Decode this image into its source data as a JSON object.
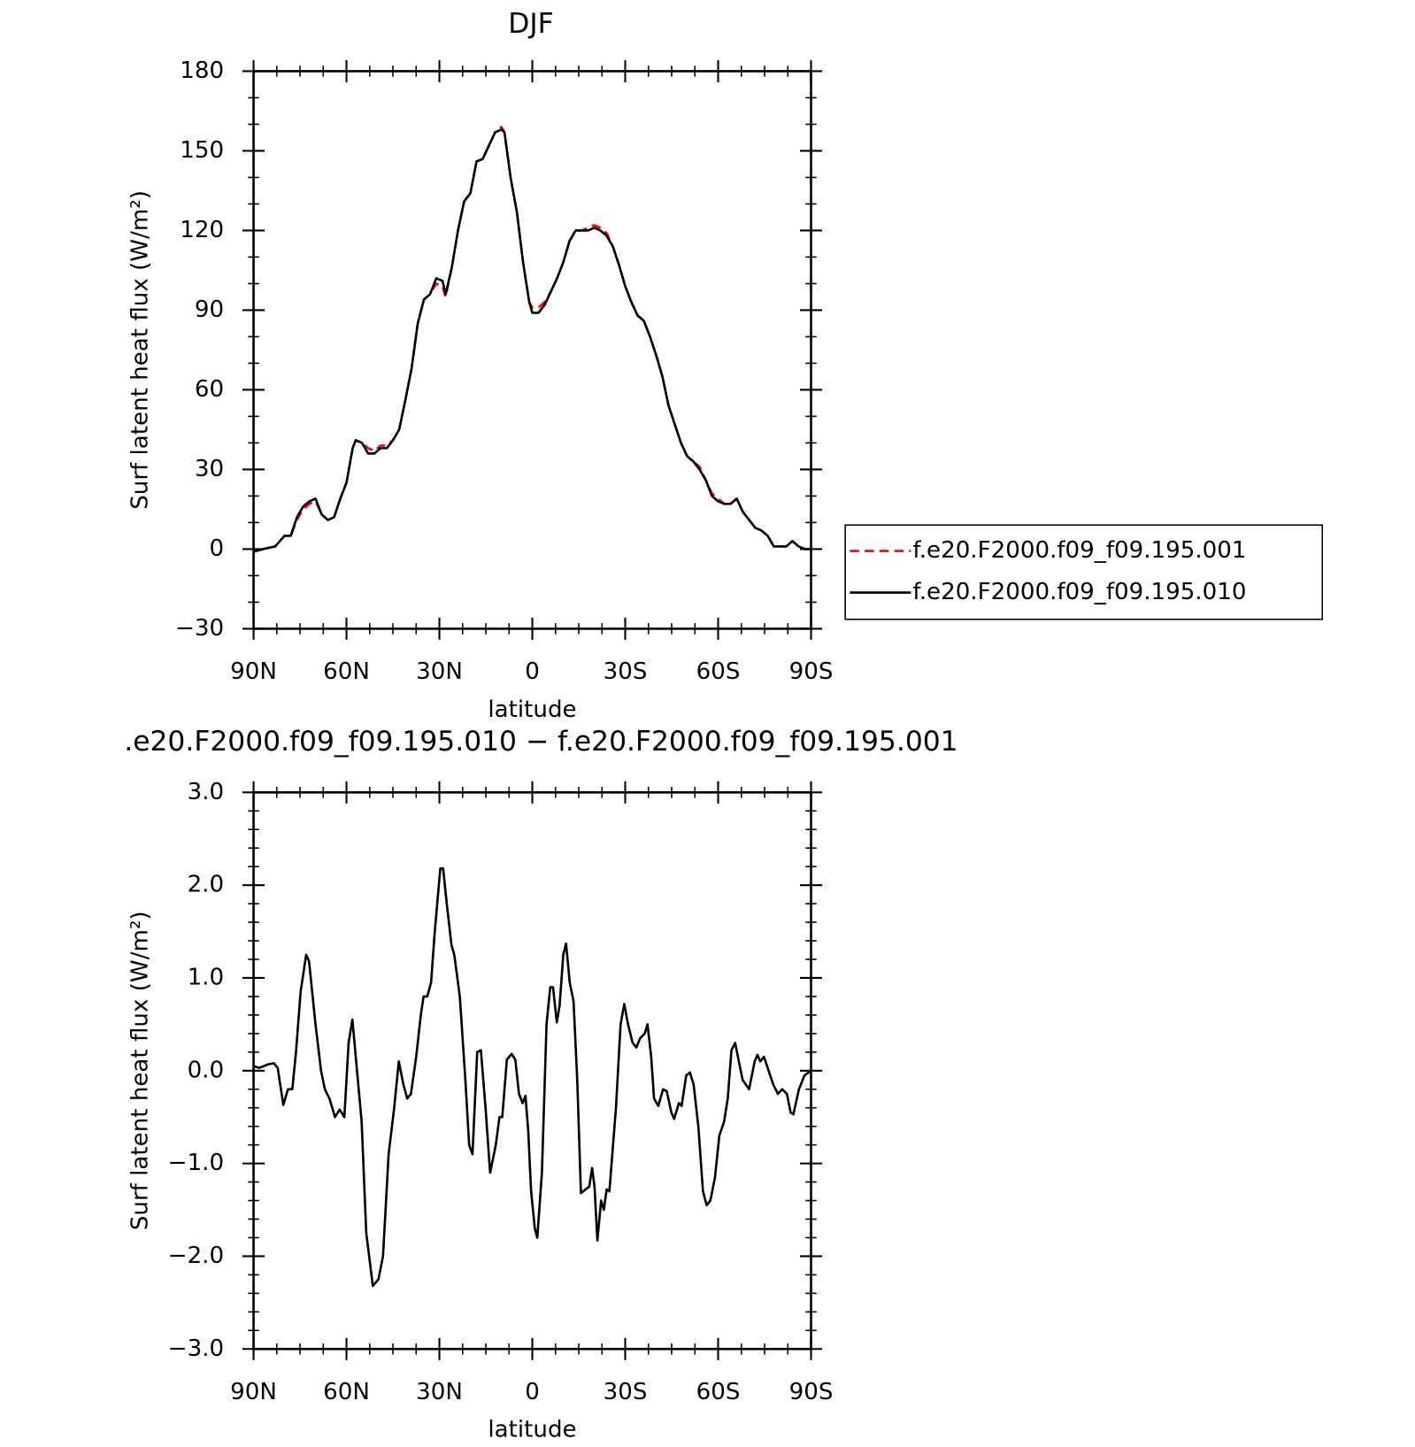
{
  "chart_data": [
    {
      "type": "line",
      "title": "DJF",
      "xlabel": "latitude",
      "ylabel": "Surf latent heat flux (W/m²)",
      "x": [
        90,
        87,
        83,
        80,
        78,
        76,
        74,
        72,
        70,
        68,
        66,
        64,
        62,
        60,
        58,
        57,
        55,
        53,
        51,
        49,
        47,
        45,
        43,
        41,
        39,
        37,
        35,
        33,
        31,
        29,
        28,
        26,
        24,
        22,
        20,
        18,
        16,
        14,
        12,
        10,
        9,
        7,
        5,
        3,
        1,
        0,
        -2,
        -4,
        -6,
        -8,
        -10,
        -12,
        -14,
        -16,
        -18,
        -20,
        -22,
        -24,
        -26,
        -28,
        -30,
        -32,
        -34,
        -36,
        -38,
        -40,
        -42,
        -44,
        -46,
        -48,
        -50,
        -52,
        -54,
        -56,
        -58,
        -60,
        -62,
        -64,
        -66,
        -68,
        -70,
        -72,
        -74,
        -76,
        -78,
        -80,
        -82,
        -84,
        -86,
        -88,
        -90
      ],
      "series": [
        {
          "name": "f.e20.F2000.f09_f09.195.001",
          "color": "#ff0000",
          "linestyle": "dashed",
          "values": [
            -1,
            0,
            1,
            5,
            5,
            11,
            15,
            17,
            18,
            13,
            11,
            12,
            19,
            25,
            38,
            41,
            40,
            38,
            37,
            39,
            39,
            41,
            45,
            56,
            68,
            85,
            94,
            96,
            100,
            99,
            95,
            106,
            120,
            131,
            134,
            146,
            147,
            152,
            157,
            159,
            157,
            140,
            127,
            108,
            93,
            91,
            91,
            93,
            97,
            102,
            108,
            116,
            120,
            120,
            121,
            122,
            121,
            119,
            114,
            107,
            99,
            93,
            88,
            86,
            80,
            73,
            65,
            54,
            47,
            40,
            35,
            33,
            31,
            26,
            21,
            19,
            17,
            17,
            19,
            14,
            11,
            8,
            7,
            5,
            1,
            1,
            1,
            3,
            1,
            0,
            0
          ]
        },
        {
          "name": "f.e20.F2000.f09_f09.195.010",
          "color": "#000000",
          "linestyle": "solid",
          "values": [
            -1,
            0,
            1,
            5,
            5,
            12,
            16,
            18,
            19,
            13,
            11,
            12,
            19,
            25,
            38,
            41,
            40,
            36,
            36,
            38,
            38,
            41,
            45,
            56,
            68,
            85,
            94,
            96,
            102,
            101,
            96,
            106,
            120,
            131,
            134,
            146,
            147,
            152,
            157,
            158,
            157,
            140,
            127,
            108,
            93,
            89,
            89,
            92,
            97,
            102,
            108,
            116,
            120,
            120,
            120,
            121,
            120,
            118,
            114,
            107,
            99,
            93,
            88,
            86,
            80,
            73,
            65,
            54,
            47,
            40,
            35,
            33,
            30,
            26,
            20,
            18,
            17,
            17,
            19,
            14,
            11,
            8,
            7,
            5,
            1,
            1,
            1,
            3,
            1,
            0,
            0
          ]
        }
      ],
      "xlim": [
        90,
        -90
      ],
      "xticks": [
        {
          "value": 90,
          "label": "90N"
        },
        {
          "value": 60,
          "label": "60N"
        },
        {
          "value": 30,
          "label": "30N"
        },
        0,
        {
          "value": -30,
          "label": "30S"
        },
        {
          "value": -60,
          "label": "60S"
        },
        {
          "value": -90,
          "label": "90S"
        }
      ],
      "ylim": [
        -30,
        180
      ],
      "yticks": [
        {
          "value": -30,
          "label": "−30"
        },
        0,
        30,
        60,
        90,
        120,
        150,
        180
      ],
      "legend": "right"
    },
    {
      "type": "line",
      "title": ".e20.F2000.f09_f09.195.010 − f.e20.F2000.f09_f09.195.001",
      "xlabel": "latitude",
      "ylabel": "Surf latent heat flux (W/m²)",
      "x": [
        90,
        88.2,
        85.2,
        83.4,
        82.2,
        80.4,
        78.9,
        77.5,
        76.3,
        74.8,
        73,
        72.1,
        70,
        68.2,
        67,
        65.5,
        63.7,
        62.2,
        60.7,
        59.3,
        58.1,
        56.6,
        55.1,
        53.6,
        51.5,
        49.7,
        48.2,
        46.4,
        44.6,
        43.1,
        41.6,
        40.4,
        39.2,
        37.5,
        36,
        35.1,
        33.9,
        32.7,
        31.5,
        29.7,
        28.8,
        27.6,
        26.1,
        25.2,
        23.4,
        21.6,
        20.4,
        19.3,
        17.8,
        16.6,
        15.1,
        13.6,
        11.8,
        10.6,
        9.7,
        8.2,
        6.7,
        5.5,
        4.3,
        3.1,
        2.2,
        1.3,
        0.4,
        -0.8,
        -1.6,
        -3.1,
        -4.6,
        -5.8,
        -6.7,
        -7.9,
        -8.8,
        -10,
        -10.9,
        -12.1,
        -13.3,
        -14.5,
        -15.7,
        -17.2,
        -18.4,
        -19.3,
        -20.1,
        -21,
        -22.2,
        -23.1,
        -24,
        -24.9,
        -27,
        -28.5,
        -29.7,
        -30.9,
        -32.4,
        -33.6,
        -34.8,
        -36.3,
        -37.2,
        -38.4,
        -39.3,
        -40.7,
        -42.2,
        -43.4,
        -44.9,
        -45.8,
        -47.3,
        -48.2,
        -49.7,
        -50.9,
        -52.1,
        -53.6,
        -55.1,
        -56.3,
        -57.5,
        -59,
        -60.4,
        -61.9,
        -63.1,
        -64.3,
        -65.5,
        -66.7,
        -67.9,
        -70,
        -71.8,
        -72.7,
        -73.6,
        -74.8,
        -76.3,
        -77.8,
        -79.3,
        -80.7,
        -82.2,
        -83.4,
        -84.3,
        -86.1,
        -87.9,
        -90
      ],
      "values": [
        0.05,
        0.03,
        0.07,
        0.08,
        0.03,
        -0.37,
        -0.2,
        -0.2,
        0.2,
        0.85,
        1.25,
        1.18,
        0.5,
        0,
        -0.2,
        -0.3,
        -0.5,
        -0.42,
        -0.5,
        0.3,
        0.55,
        0,
        -0.55,
        -1.75,
        -2.32,
        -2.25,
        -2,
        -0.9,
        -0.4,
        0.1,
        -0.15,
        -0.3,
        -0.25,
        0.15,
        0.6,
        0.8,
        0.8,
        0.95,
        1.5,
        2.18,
        2.18,
        1.8,
        1.35,
        1.25,
        0.8,
        -0.1,
        -0.8,
        -0.9,
        0.2,
        0.22,
        -0.4,
        -1.1,
        -0.8,
        -0.5,
        -0.5,
        0.12,
        0.18,
        0.12,
        -0.25,
        -0.35,
        -0.27,
        -0.65,
        -1.3,
        -1.7,
        -1.8,
        -1.1,
        0.5,
        0.9,
        0.9,
        0.52,
        0.7,
        1.25,
        1.37,
        0.95,
        0.75,
        -0.1,
        -1.32,
        -1.28,
        -1.25,
        -1.05,
        -1.25,
        -1.83,
        -1.4,
        -1.5,
        -1.28,
        -1.3,
        -0.4,
        0.5,
        0.72,
        0.5,
        0.3,
        0.25,
        0.35,
        0.4,
        0.5,
        0.15,
        -0.3,
        -0.38,
        -0.2,
        -0.22,
        -0.45,
        -0.52,
        -0.35,
        -0.38,
        -0.05,
        -0.02,
        -0.15,
        -0.6,
        -1.3,
        -1.45,
        -1.4,
        -1.15,
        -0.7,
        -0.55,
        -0.3,
        0.22,
        0.3,
        0.1,
        -0.1,
        -0.2,
        0.1,
        0.17,
        0.1,
        0.15,
        0,
        -0.15,
        -0.25,
        -0.2,
        -0.25,
        -0.45,
        -0.47,
        -0.2,
        -0.05,
        0
      ],
      "color": "#000000",
      "xlim": [
        90,
        -90
      ],
      "xticks": [
        {
          "value": 90,
          "label": "90N"
        },
        {
          "value": 60,
          "label": "60N"
        },
        {
          "value": 30,
          "label": "30N"
        },
        0,
        {
          "value": -30,
          "label": "30S"
        },
        {
          "value": -60,
          "label": "60S"
        },
        {
          "value": -90,
          "label": "90S"
        }
      ],
      "ylim": [
        -3,
        3
      ],
      "yticks": [
        {
          "value": -3,
          "label": "−3.0"
        },
        {
          "value": -2,
          "label": "−2.0"
        },
        {
          "value": -1,
          "label": "−1.0"
        },
        {
          "value": 0,
          "label": "0.0"
        },
        {
          "value": 1,
          "label": "1.0"
        },
        {
          "value": 2,
          "label": "2.0"
        },
        {
          "value": 3,
          "label": "3.0"
        }
      ]
    }
  ]
}
